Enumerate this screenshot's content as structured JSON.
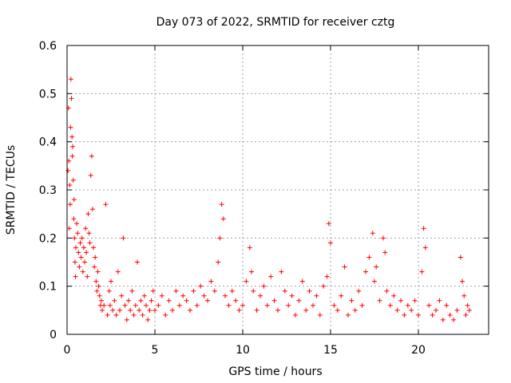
{
  "chart_data": {
    "type": "scatter",
    "title": "Day 073 of 2022, SRMTID for receiver cztg",
    "xlabel": "GPS time / hours",
    "ylabel": "SRMTID / TECUs",
    "xlim": [
      0,
      24
    ],
    "ylim": [
      0,
      0.6
    ],
    "x_ticks": [
      0,
      5,
      10,
      15,
      20
    ],
    "x_tick_labels": [
      "0",
      "5",
      "10",
      "15",
      "20"
    ],
    "y_ticks": [
      0,
      0.1,
      0.2,
      0.3,
      0.4,
      0.5,
      0.6
    ],
    "y_tick_labels": [
      "0",
      "0.1",
      "0.2",
      "0.3",
      "0.4",
      "0.5",
      "0.6"
    ],
    "grid": true,
    "marker": "+",
    "color": "#ff0000",
    "series": [
      {
        "name": "SRMTID",
        "x": [
          0.05,
          0.08,
          0.1,
          0.12,
          0.15,
          0.18,
          0.2,
          0.22,
          0.25,
          0.28,
          0.3,
          0.32,
          0.35,
          0.38,
          0.4,
          0.42,
          0.45,
          0.48,
          0.5,
          0.55,
          0.6,
          0.65,
          0.7,
          0.75,
          0.8,
          0.85,
          0.9,
          0.95,
          1.0,
          1.05,
          1.1,
          1.15,
          1.2,
          1.25,
          1.3,
          1.35,
          1.4,
          1.45,
          1.5,
          1.55,
          1.6,
          1.65,
          1.7,
          1.75,
          1.8,
          1.85,
          1.9,
          1.95,
          2.0,
          2.1,
          2.2,
          2.3,
          2.4,
          2.45,
          2.5,
          2.6,
          2.7,
          2.8,
          2.9,
          3.0,
          3.1,
          3.2,
          3.3,
          3.4,
          3.5,
          3.6,
          3.7,
          3.8,
          3.9,
          4.0,
          4.1,
          4.2,
          4.3,
          4.4,
          4.5,
          4.6,
          4.7,
          4.8,
          4.9,
          5.0,
          5.2,
          5.4,
          5.6,
          5.8,
          6.0,
          6.2,
          6.4,
          6.6,
          6.8,
          7.0,
          7.2,
          7.4,
          7.6,
          7.8,
          8.0,
          8.2,
          8.4,
          8.6,
          8.7,
          8.8,
          8.9,
          9.0,
          9.2,
          9.4,
          9.6,
          9.8,
          10.0,
          10.2,
          10.4,
          10.5,
          10.6,
          10.8,
          11.0,
          11.2,
          11.4,
          11.6,
          11.8,
          12.0,
          12.2,
          12.4,
          12.6,
          12.8,
          13.0,
          13.2,
          13.4,
          13.6,
          13.8,
          14.0,
          14.2,
          14.4,
          14.6,
          14.8,
          14.9,
          15.0,
          15.2,
          15.4,
          15.6,
          15.8,
          16.0,
          16.2,
          16.4,
          16.6,
          16.8,
          17.0,
          17.2,
          17.4,
          17.5,
          17.6,
          17.8,
          18.0,
          18.1,
          18.2,
          18.4,
          18.6,
          18.8,
          19.0,
          19.2,
          19.4,
          19.6,
          19.8,
          20.0,
          20.2,
          20.3,
          20.4,
          20.6,
          20.8,
          21.0,
          21.2,
          21.4,
          21.6,
          21.8,
          22.0,
          22.2,
          22.4,
          22.5,
          22.6,
          22.7,
          22.8,
          22.9
        ],
        "y": [
          0.34,
          0.47,
          0.36,
          0.22,
          0.31,
          0.27,
          0.43,
          0.53,
          0.49,
          0.41,
          0.37,
          0.39,
          0.32,
          0.24,
          0.28,
          0.2,
          0.15,
          0.12,
          0.18,
          0.23,
          0.21,
          0.17,
          0.14,
          0.19,
          0.16,
          0.2,
          0.13,
          0.18,
          0.15,
          0.22,
          0.17,
          0.12,
          0.25,
          0.21,
          0.19,
          0.33,
          0.37,
          0.26,
          0.18,
          0.14,
          0.16,
          0.11,
          0.09,
          0.13,
          0.1,
          0.08,
          0.06,
          0.07,
          0.05,
          0.06,
          0.27,
          0.04,
          0.09,
          0.06,
          0.11,
          0.05,
          0.07,
          0.04,
          0.13,
          0.05,
          0.08,
          0.2,
          0.06,
          0.03,
          0.07,
          0.05,
          0.09,
          0.04,
          0.06,
          0.15,
          0.05,
          0.07,
          0.04,
          0.08,
          0.06,
          0.03,
          0.05,
          0.07,
          0.09,
          0.05,
          0.06,
          0.08,
          0.04,
          0.07,
          0.05,
          0.09,
          0.06,
          0.08,
          0.07,
          0.05,
          0.09,
          0.06,
          0.1,
          0.08,
          0.07,
          0.11,
          0.09,
          0.15,
          0.2,
          0.27,
          0.24,
          0.08,
          0.06,
          0.09,
          0.07,
          0.05,
          0.06,
          0.11,
          0.18,
          0.13,
          0.09,
          0.05,
          0.08,
          0.1,
          0.06,
          0.12,
          0.07,
          0.05,
          0.13,
          0.09,
          0.06,
          0.08,
          0.04,
          0.07,
          0.11,
          0.05,
          0.09,
          0.06,
          0.08,
          0.04,
          0.1,
          0.12,
          0.23,
          0.19,
          0.06,
          0.05,
          0.08,
          0.14,
          0.04,
          0.07,
          0.05,
          0.09,
          0.06,
          0.13,
          0.16,
          0.21,
          0.11,
          0.14,
          0.07,
          0.2,
          0.17,
          0.09,
          0.06,
          0.08,
          0.05,
          0.07,
          0.04,
          0.06,
          0.05,
          0.07,
          0.04,
          0.13,
          0.22,
          0.18,
          0.06,
          0.04,
          0.05,
          0.07,
          0.03,
          0.06,
          0.04,
          0.03,
          0.05,
          0.16,
          0.11,
          0.08,
          0.04,
          0.06,
          0.05
        ]
      }
    ]
  }
}
